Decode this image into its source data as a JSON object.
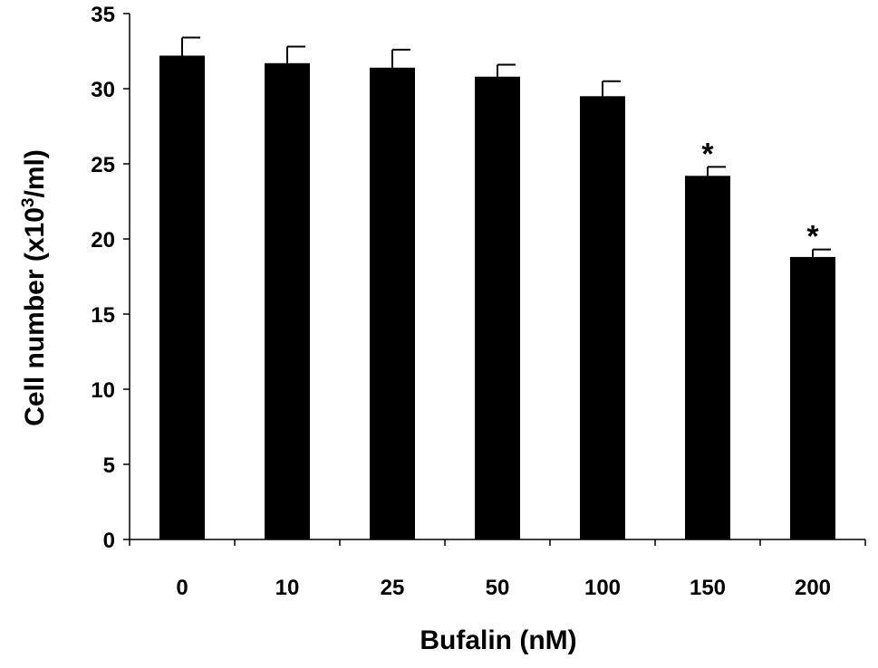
{
  "chart_data": {
    "type": "bar",
    "title": "",
    "xlabel": "Bufalin (nM)",
    "ylabel": {
      "prefix": "Cell number (x10",
      "superscript": "3",
      "suffix": "/ml)"
    },
    "categories": [
      "0",
      "10",
      "25",
      "50",
      "100",
      "150",
      "200"
    ],
    "values": [
      32.2,
      31.7,
      31.4,
      30.8,
      29.5,
      24.2,
      18.8
    ],
    "error_upper": [
      1.2,
      1.1,
      1.2,
      0.8,
      1.0,
      0.6,
      0.5
    ],
    "significance": [
      "",
      "",
      "",
      "",
      "",
      "*",
      "*"
    ],
    "ylim": [
      0,
      35
    ],
    "yticks": [
      0,
      5,
      10,
      15,
      20,
      25,
      30,
      35
    ],
    "grid": false,
    "legend": "none",
    "colors": {
      "bar": "#000000",
      "axis": "#000000",
      "background": "#ffffff"
    }
  }
}
